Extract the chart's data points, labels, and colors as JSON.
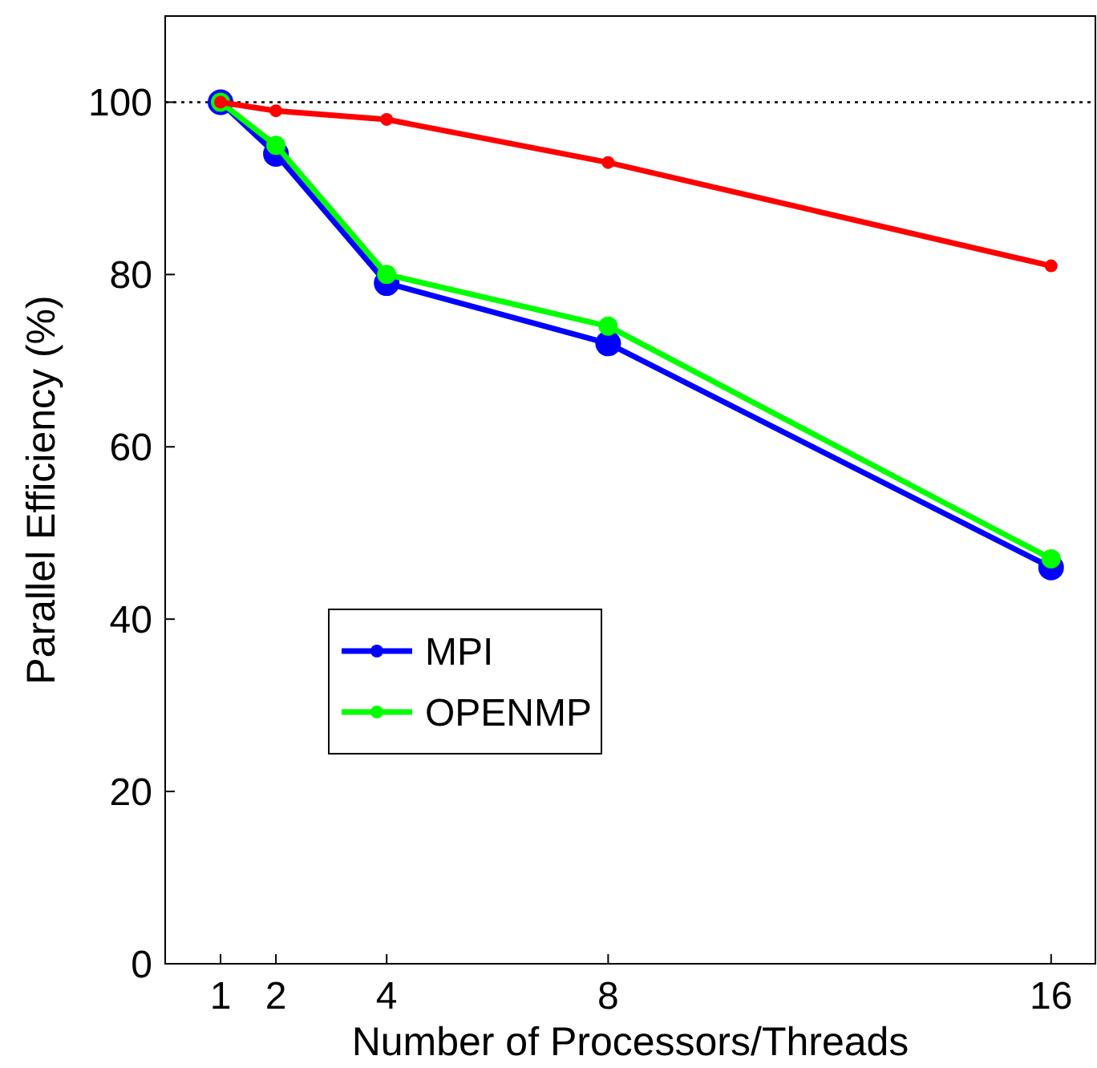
{
  "chart_data": {
    "type": "line",
    "xlabel": "Number of Processors/Threads",
    "ylabel": "Parallel Efficiency (%)",
    "x": [
      1,
      2,
      4,
      8,
      16
    ],
    "xlim": [
      0,
      16.8
    ],
    "xticks": [
      1,
      2,
      4,
      8,
      16
    ],
    "ylim": [
      0,
      110
    ],
    "yticks": [
      0,
      20,
      40,
      60,
      80,
      100
    ],
    "series": [
      {
        "name": "MPI",
        "color": "#0000ff",
        "values": [
          100,
          94,
          79,
          72,
          46
        ]
      },
      {
        "name": "OPENMP",
        "color": "#00ff00",
        "values": [
          100,
          95,
          80,
          74,
          47
        ]
      },
      {
        "color": "#ff0000",
        "values": [
          100,
          99,
          98,
          93,
          81
        ]
      }
    ],
    "ref_lines": [
      {
        "axis": "y",
        "value": 100,
        "color": "#000000",
        "line_style": "dotted"
      }
    ],
    "marker": "circle",
    "line_style": "solid",
    "legend": "bottom left",
    "grid": false
  }
}
